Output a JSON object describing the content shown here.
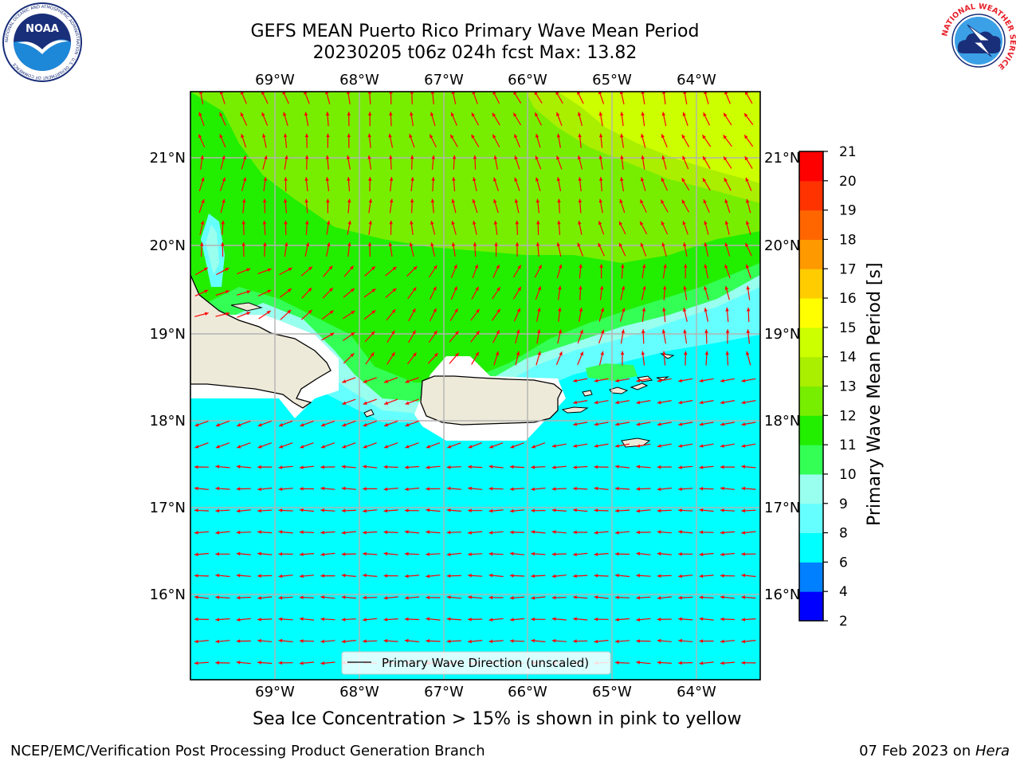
{
  "header": {
    "title_line1": "GEFS MEAN Puerto Rico Primary Wave Mean Period",
    "title_line2": "20230205 t06z 024h fcst   Max: 13.82"
  },
  "logos": {
    "left": {
      "name": "noaa-logo",
      "text": "NOAA",
      "ring_text": "NATIONAL OCEANIC AND ATMOSPHERIC ADMINISTRATION · U.S. DEPARTMENT OF COMMERCE"
    },
    "right": {
      "name": "nws-logo",
      "ring_text": "NATIONAL WEATHER SERVICE"
    }
  },
  "map": {
    "top_lon_labels": [
      "69°W",
      "68°W",
      "67°W",
      "66°W",
      "65°W",
      "64°W"
    ],
    "bottom_lon_labels": [
      "69°W",
      "68°W",
      "67°W",
      "66°W",
      "65°W",
      "64°W"
    ],
    "left_lat_labels": [
      "21°N",
      "20°N",
      "19°N",
      "18°N",
      "17°N",
      "16°N"
    ],
    "right_lat_labels": [
      "21°N",
      "20°N",
      "19°N",
      "18°N",
      "17°N",
      "16°N"
    ],
    "legend_label": "Primary Wave Direction (unscaled)",
    "colors": {
      "land": "#eeead9",
      "arrow": "#ff0000",
      "grid": "#b3b3b3"
    }
  },
  "colorbar": {
    "title": "Primary Wave Mean Period [s]",
    "ticks": [
      "2",
      "4",
      "6",
      "8",
      "9",
      "10",
      "11",
      "12",
      "13",
      "14",
      "15",
      "16",
      "17",
      "18",
      "19",
      "20",
      "21"
    ],
    "colors": [
      "#0000ff",
      "#0080ff",
      "#00ffff",
      "#66ffff",
      "#99ffee",
      "#33ff55",
      "#22ee00",
      "#77ee00",
      "#aaee00",
      "#ccff00",
      "#ffff00",
      "#ffcc00",
      "#ff9900",
      "#ff6600",
      "#ff3300",
      "#ff0000"
    ]
  },
  "note": "Sea Ice Concentration > 15% is shown in pink to yellow",
  "footer": {
    "left": "NCEP/EMC/Verification Post Processing Product Generation Branch",
    "right_prefix": "07 Feb 2023 on ",
    "right_host": "Hera"
  }
}
